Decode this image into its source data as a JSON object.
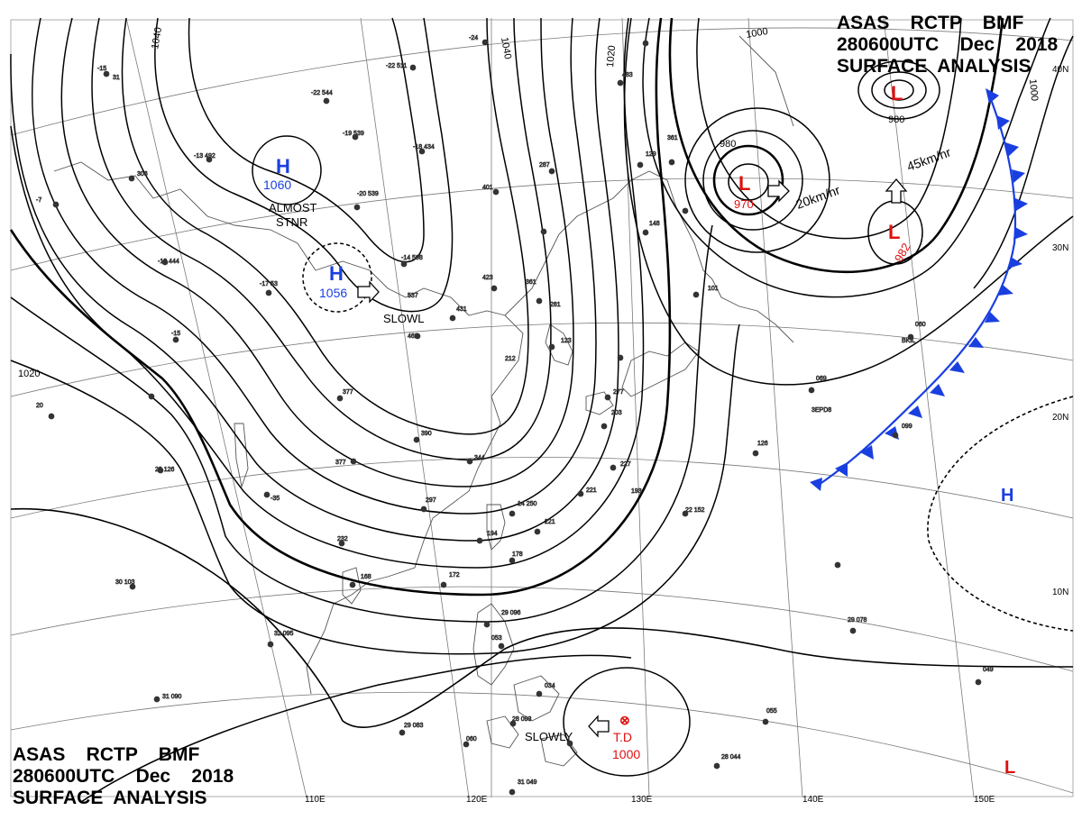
{
  "title": {
    "line1": "ASAS    RCTP    BMF",
    "line2": "280600UTC    Dec    2018",
    "line3": "SURFACE  ANALYSIS"
  },
  "colors": {
    "high": "#1a3fe0",
    "low": "#e01010",
    "front": "#1a3fe0",
    "isobar": "#000000",
    "coast": "#555555"
  },
  "longitudes": {
    "lon110": "110E",
    "lon120": "120E",
    "lon130": "130E",
    "lon140": "140E",
    "lon150": "150E"
  },
  "latitudes": {
    "lat10": "10N",
    "lat20": "20N",
    "lat30": "30N",
    "lat40": "40N"
  },
  "isobars": {
    "i1040a": "1040",
    "i1040b": "1040",
    "i1020a": "1020",
    "i1020b": "1020",
    "i1000a": "1000",
    "i1000b": "1000",
    "i980a": "980",
    "i980b": "980"
  },
  "systems": {
    "h1": {
      "letter": "H",
      "pressure": "1060",
      "motion_l1": "ALMOST",
      "motion_l2": "STNR"
    },
    "h2": {
      "letter": "H",
      "pressure": "1056",
      "motion": "SLOWL"
    },
    "l1": {
      "letter": "L",
      "pressure": "970",
      "motion": "20km/hr"
    },
    "l2": {
      "letter": "L",
      "pressure": "982",
      "motion": "45km/hr"
    },
    "l3": {
      "letter": "L"
    },
    "h3": {
      "letter": "H"
    },
    "l4": {
      "letter": "L"
    },
    "td": {
      "symbol": "⊗",
      "label": "T.D",
      "pressure": "1000",
      "motion": "SLOWLY"
    }
  }
}
